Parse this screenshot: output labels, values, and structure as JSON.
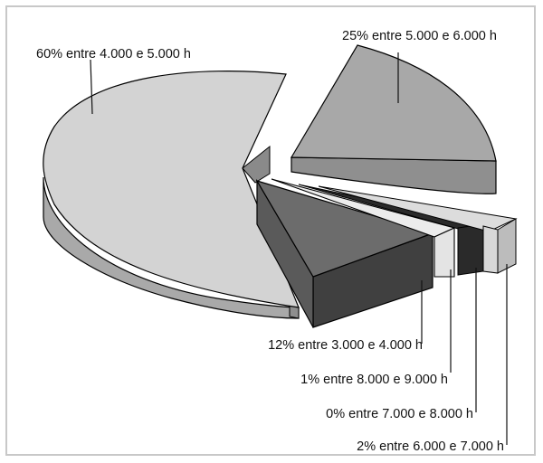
{
  "chart_data": {
    "type": "pie",
    "title": "",
    "slices": [
      {
        "label": "60% entre 4.000 e 5.000 h",
        "value": 60,
        "color": "#d3d3d3"
      },
      {
        "label": "25% entre 5.000 e 6.000 h",
        "value": 25,
        "color": "#a8a8a8"
      },
      {
        "label": "12% entre 3.000 e 4.000 h",
        "value": 12,
        "color": "#6c6c6c"
      },
      {
        "label": "1% entre 8.000 e 9.000 h",
        "value": 1,
        "color": "#ececec"
      },
      {
        "label": "0% entre 7.000 e 8.000 h",
        "value": 0,
        "color": "#2a2a2a"
      },
      {
        "label": "2% entre 6.000 e 7.000 h",
        "value": 2,
        "color": "#dcdcdc"
      }
    ],
    "style": "3d-exploded",
    "legend": "none"
  }
}
